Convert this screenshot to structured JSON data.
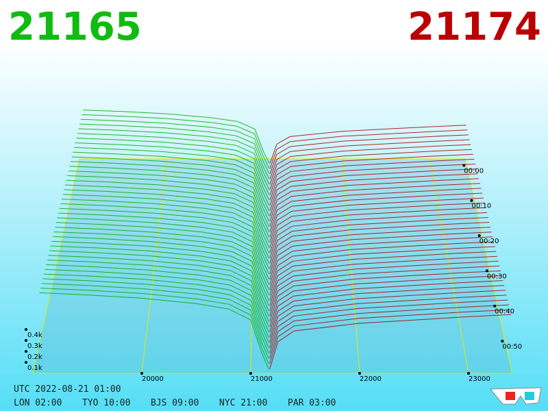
{
  "chart_data": {
    "type": "depth3d",
    "bid_price": 21165,
    "ask_price": 21174,
    "xlim": [
      19000,
      23400
    ],
    "xticks": [
      20000,
      21000,
      22000,
      23000
    ],
    "depth_ticks": [
      {
        "value": 100,
        "label": "0.1k"
      },
      {
        "value": 200,
        "label": "0.2k"
      },
      {
        "value": 300,
        "label": "0.3k"
      },
      {
        "value": 400,
        "label": "0.4k"
      }
    ],
    "time_ticks": [
      "00:00",
      "00:10",
      "00:20",
      "00:30",
      "00:40",
      "00:50"
    ],
    "bid": {
      "color": "#00aa00",
      "prices": [
        21165,
        21100,
        21000,
        20800,
        20500,
        20000,
        19500,
        19050
      ],
      "values": [
        0,
        150,
        450,
        550,
        600,
        650,
        680,
        700
      ]
    },
    "ask": {
      "color": "#aa0000",
      "prices": [
        21174,
        21250,
        21400,
        22000,
        22500,
        23000,
        23400
      ],
      "values": [
        0,
        250,
        350,
        420,
        450,
        480,
        500
      ]
    },
    "footer": {
      "utc": "UTC 2022-08-21 01:00",
      "zones": [
        "LON 02:00",
        "TYO 10:00",
        "BJS 09:00",
        "NYC 21:00",
        "PAR 03:00"
      ]
    }
  }
}
